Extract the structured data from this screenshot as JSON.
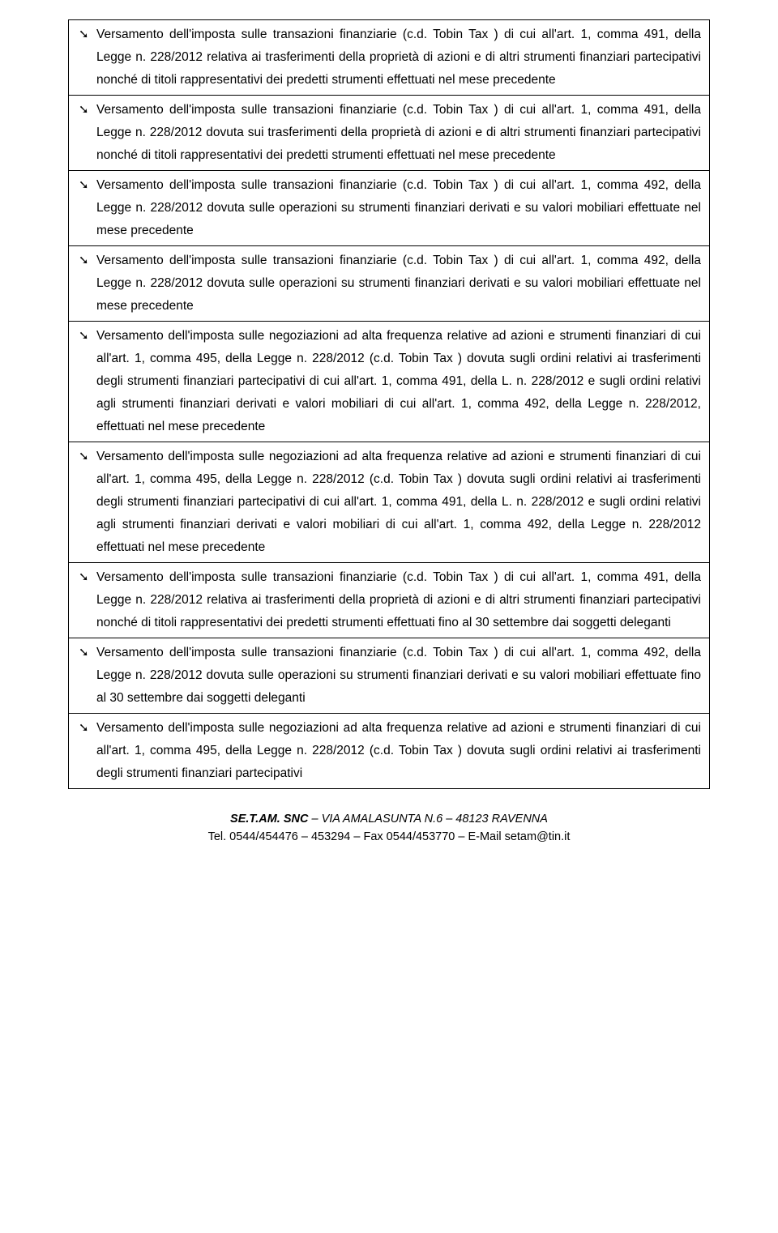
{
  "arrow_glyph": "➘",
  "items": [
    "Versamento dell'imposta sulle transazioni finanziarie (c.d. Tobin Tax ) di cui all'art. 1, comma 491, della Legge n. 228/2012 relativa ai trasferimenti della proprietà di azioni e di altri strumenti finanziari partecipativi nonché di titoli rappresentativi dei predetti strumenti effettuati nel mese precedente",
    "Versamento dell'imposta sulle transazioni finanziarie (c.d. Tobin Tax ) di cui all'art. 1, comma 491, della Legge n. 228/2012 dovuta sui trasferimenti della proprietà di azioni e di altri strumenti finanziari partecipativi nonché di titoli rappresentativi dei predetti strumenti effettuati nel mese precedente",
    "Versamento dell'imposta sulle transazioni finanziarie (c.d. Tobin Tax ) di cui all'art. 1, comma 492, della Legge n. 228/2012 dovuta sulle operazioni su strumenti finanziari derivati e su valori mobiliari effettuate nel mese precedente",
    "Versamento dell'imposta sulle transazioni finanziarie (c.d. Tobin Tax ) di cui all'art. 1, comma 492, della Legge n. 228/2012 dovuta sulle operazioni su strumenti finanziari derivati e su valori mobiliari effettuate nel mese precedente",
    "Versamento dell'imposta sulle negoziazioni ad alta frequenza relative ad azioni e strumenti finanziari di cui all'art. 1, comma 495, della Legge n. 228/2012 (c.d. Tobin Tax ) dovuta sugli ordini relativi ai trasferimenti degli strumenti finanziari partecipativi di cui all'art. 1, comma 491, della L. n. 228/2012 e sugli ordini relativi agli strumenti finanziari derivati e valori mobiliari di cui all'art. 1, comma 492, della Legge n. 228/2012, effettuati nel mese precedente",
    "Versamento dell'imposta sulle negoziazioni ad alta frequenza relative ad azioni e strumenti finanziari di cui all'art. 1, comma 495, della Legge n. 228/2012 (c.d. Tobin Tax ) dovuta sugli ordini relativi ai trasferimenti degli strumenti finanziari partecipativi di cui all'art. 1, comma 491, della L. n. 228/2012 e sugli ordini relativi agli strumenti finanziari derivati e valori mobiliari di cui all'art. 1, comma 492, della Legge n. 228/2012 effettuati nel mese precedente",
    "Versamento dell'imposta sulle transazioni finanziarie (c.d. Tobin Tax ) di cui all'art. 1, comma 491, della Legge n. 228/2012 relativa ai trasferimenti della proprietà di azioni e di altri strumenti finanziari partecipativi nonché di titoli rappresentativi dei predetti strumenti effettuati fino al 30 settembre dai soggetti deleganti",
    "Versamento dell'imposta sulle transazioni finanziarie (c.d. Tobin Tax ) di cui all'art. 1, comma 492, della Legge n. 228/2012 dovuta sulle operazioni su strumenti finanziari derivati e su valori mobiliari effettuate fino al 30 settembre dai soggetti deleganti",
    "Versamento dell'imposta sulle negoziazioni ad alta frequenza relative ad azioni e strumenti finanziari di cui all'art. 1, comma 495, della Legge n. 228/2012 (c.d. Tobin Tax ) dovuta sugli ordini relativi ai trasferimenti degli strumenti finanziari partecipativi"
  ],
  "footer": {
    "company": "SE.T.AM. SNC",
    "addr_rest": " – VIA AMALASUNTA N.6 – 48123 RAVENNA",
    "contact": "Tel. 0544/454476 – 453294 – Fax 0544/453770 – E-Mail setam@tin.it"
  }
}
